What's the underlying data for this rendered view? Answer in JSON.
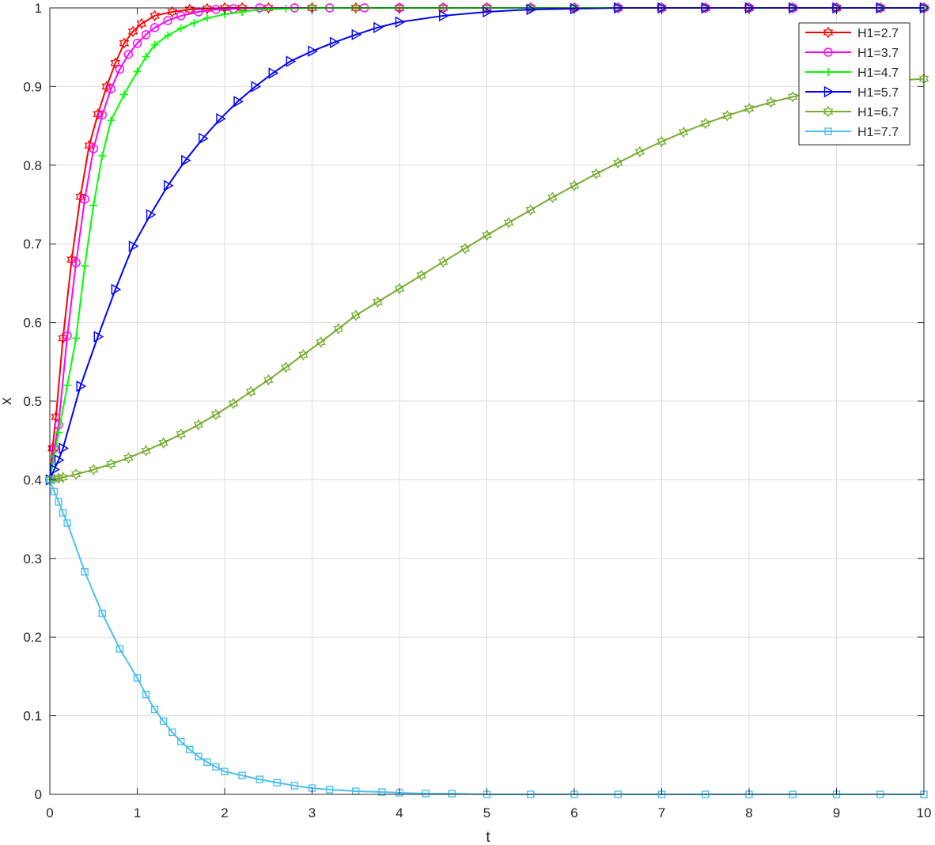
{
  "chart_data": {
    "type": "line",
    "title": "",
    "xlabel": "t",
    "ylabel": "x",
    "xlim": [
      0,
      10
    ],
    "ylim": [
      0,
      1
    ],
    "grid": true,
    "legend_position": "top-right",
    "x_ticks": [
      "0",
      "1",
      "2",
      "3",
      "4",
      "5",
      "6",
      "7",
      "8",
      "9",
      "10"
    ],
    "y_ticks": [
      "0",
      "0.1",
      "0.2",
      "0.3",
      "0.4",
      "0.5",
      "0.6",
      "0.7",
      "0.8",
      "0.9",
      "1"
    ],
    "series": [
      {
        "name": "H1=2.7",
        "color": "#ff0000",
        "marker": "hexagram",
        "x": [
          0,
          0.03,
          0.07,
          0.15,
          0.25,
          0.35,
          0.45,
          0.55,
          0.65,
          0.75,
          0.85,
          0.95,
          1.05,
          1.2,
          1.4,
          1.6,
          1.8,
          2.0,
          2.2,
          2.5,
          3.0,
          3.5,
          4.0,
          4.5,
          5.0,
          5.5,
          6.0,
          6.5,
          7.0,
          7.5,
          8.0,
          8.5,
          9.0,
          9.5,
          10.0
        ],
        "y": [
          0.4,
          0.44,
          0.48,
          0.58,
          0.68,
          0.76,
          0.825,
          0.865,
          0.9,
          0.93,
          0.955,
          0.97,
          0.98,
          0.99,
          0.995,
          0.998,
          0.999,
          1,
          1,
          1,
          1,
          1,
          1,
          1,
          1,
          1,
          1,
          1,
          1,
          1,
          1,
          1,
          1,
          1,
          1
        ]
      },
      {
        "name": "H1=3.7",
        "color": "#ff00ff",
        "marker": "circle",
        "x": [
          0,
          0.05,
          0.1,
          0.2,
          0.3,
          0.4,
          0.5,
          0.6,
          0.7,
          0.8,
          0.9,
          1.0,
          1.1,
          1.2,
          1.35,
          1.5,
          1.7,
          1.9,
          2.1,
          2.4,
          2.8,
          3.2,
          3.6,
          4.0,
          4.5,
          5.0,
          5.5,
          6.0,
          6.5,
          7.0,
          7.5,
          8.0,
          8.5,
          9.0,
          9.5,
          10.0
        ],
        "y": [
          0.4,
          0.44,
          0.47,
          0.583,
          0.676,
          0.757,
          0.821,
          0.864,
          0.897,
          0.922,
          0.941,
          0.955,
          0.966,
          0.975,
          0.984,
          0.99,
          0.995,
          0.998,
          0.999,
          1,
          1,
          1,
          1,
          1,
          1,
          1,
          1,
          1,
          1,
          1,
          1,
          1,
          1,
          1,
          1,
          1
        ]
      },
      {
        "name": "H1=4.7",
        "color": "#00ff00",
        "marker": "plus",
        "x": [
          0,
          0.05,
          0.1,
          0.2,
          0.3,
          0.4,
          0.5,
          0.6,
          0.7,
          0.85,
          1.0,
          1.1,
          1.2,
          1.35,
          1.5,
          1.65,
          1.8,
          2.0,
          2.2,
          2.4,
          2.7,
          3.0,
          3.5,
          4.0,
          4.5,
          5.0,
          5.5,
          6.0,
          6.5,
          7.0,
          7.5,
          8.0,
          8.5,
          9.0,
          9.5,
          10.0
        ],
        "y": [
          0.4,
          0.43,
          0.46,
          0.52,
          0.58,
          0.672,
          0.749,
          0.812,
          0.857,
          0.89,
          0.919,
          0.938,
          0.953,
          0.965,
          0.974,
          0.981,
          0.987,
          0.992,
          0.995,
          0.998,
          0.999,
          1,
          1,
          1,
          1,
          1,
          1,
          1,
          1,
          1,
          1,
          1,
          1,
          1,
          1,
          1
        ]
      },
      {
        "name": "H1=5.7",
        "color": "#0000ff",
        "marker": "triangle-right",
        "x": [
          0,
          0.05,
          0.1,
          0.15,
          0.35,
          0.55,
          0.75,
          0.95,
          1.15,
          1.35,
          1.55,
          1.75,
          1.95,
          2.15,
          2.35,
          2.55,
          2.75,
          3.0,
          3.25,
          3.5,
          3.75,
          4.0,
          4.5,
          5.0,
          5.5,
          6.0,
          6.5,
          7.0,
          7.5,
          8.0,
          8.5,
          9.0,
          9.5,
          10.0
        ],
        "y": [
          0.4,
          0.413,
          0.425,
          0.44,
          0.519,
          0.582,
          0.642,
          0.697,
          0.737,
          0.774,
          0.806,
          0.834,
          0.859,
          0.881,
          0.9,
          0.917,
          0.932,
          0.945,
          0.956,
          0.966,
          0.975,
          0.982,
          0.99,
          0.995,
          0.998,
          0.999,
          1,
          1,
          1,
          1,
          1,
          1,
          1,
          1
        ]
      },
      {
        "name": "H1=6.7",
        "color": "#77ac30",
        "marker": "hexagram",
        "x": [
          0,
          0.05,
          0.1,
          0.15,
          0.3,
          0.5,
          0.7,
          0.9,
          1.1,
          1.3,
          1.5,
          1.7,
          1.9,
          2.1,
          2.3,
          2.5,
          2.7,
          2.9,
          3.1,
          3.3,
          3.5,
          3.75,
          4.0,
          4.25,
          4.5,
          4.75,
          5.0,
          5.25,
          5.5,
          5.75,
          6.0,
          6.25,
          6.5,
          6.75,
          7.0,
          7.25,
          7.5,
          7.75,
          8.0,
          8.25,
          8.5,
          8.75,
          9.0,
          9.25,
          9.5,
          9.75,
          10.0
        ],
        "y": [
          0.4,
          0.401,
          0.402,
          0.403,
          0.407,
          0.413,
          0.42,
          0.428,
          0.437,
          0.447,
          0.458,
          0.47,
          0.483,
          0.497,
          0.512,
          0.527,
          0.543,
          0.559,
          0.575,
          0.592,
          0.609,
          0.626,
          0.643,
          0.66,
          0.677,
          0.694,
          0.711,
          0.727,
          0.743,
          0.759,
          0.774,
          0.789,
          0.803,
          0.817,
          0.83,
          0.842,
          0.853,
          0.863,
          0.872,
          0.88,
          0.887,
          0.893,
          0.898,
          0.902,
          0.905,
          0.908,
          0.91
        ]
      },
      {
        "name": "H1=7.7",
        "color": "#4dbeee",
        "marker": "square",
        "x": [
          0,
          0.05,
          0.1,
          0.15,
          0.2,
          0.4,
          0.6,
          0.8,
          1.0,
          1.1,
          1.2,
          1.3,
          1.4,
          1.5,
          1.6,
          1.7,
          1.8,
          1.9,
          2.0,
          2.2,
          2.4,
          2.6,
          2.8,
          3.0,
          3.2,
          3.5,
          3.8,
          4.0,
          4.3,
          4.6,
          5.0,
          5.5,
          6.0,
          6.5,
          7.0,
          7.5,
          8.0,
          8.5,
          9.0,
          9.5,
          10.0
        ],
        "y": [
          0.4,
          0.385,
          0.372,
          0.358,
          0.345,
          0.283,
          0.23,
          0.185,
          0.148,
          0.127,
          0.108,
          0.093,
          0.079,
          0.067,
          0.057,
          0.048,
          0.041,
          0.035,
          0.029,
          0.024,
          0.019,
          0.015,
          0.011,
          0.008,
          0.006,
          0.004,
          0.003,
          0.002,
          0.001,
          0.001,
          0,
          0,
          0,
          0,
          0,
          0,
          0,
          0,
          0,
          0,
          0
        ]
      }
    ]
  }
}
